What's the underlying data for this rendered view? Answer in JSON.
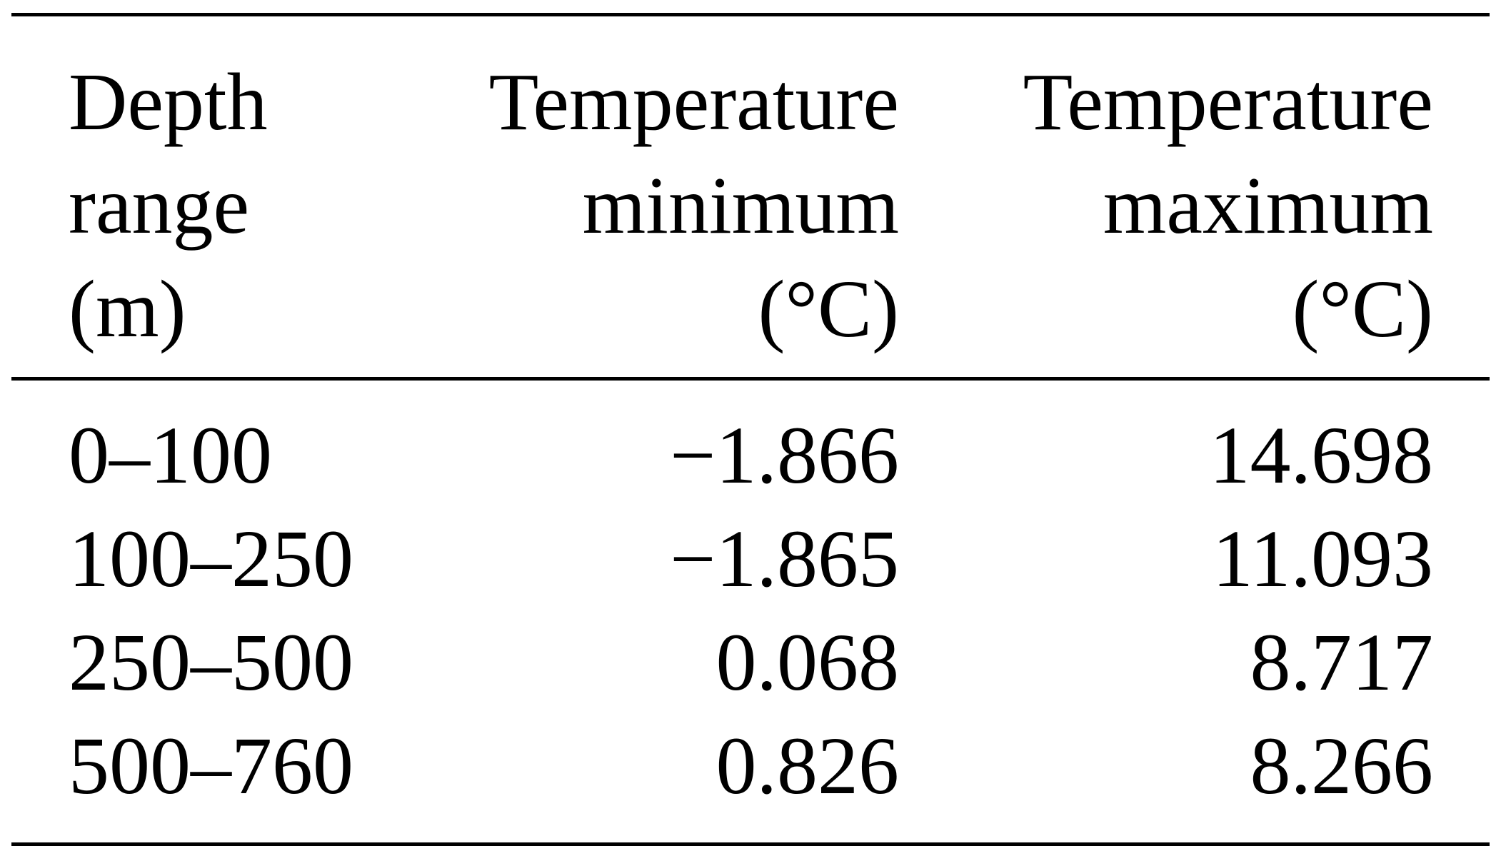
{
  "table": {
    "columns": [
      {
        "lines": [
          "Depth",
          "range",
          "(m)"
        ]
      },
      {
        "lines": [
          "Temperature",
          "minimum",
          "(°C)"
        ]
      },
      {
        "lines": [
          "Temperature",
          "maximum",
          "(°C)"
        ]
      }
    ],
    "rows": [
      {
        "depth": "0–100",
        "min": "−1.866",
        "max": "14.698"
      },
      {
        "depth": "100–250",
        "min": "−1.865",
        "max": "11.093"
      },
      {
        "depth": "250–500",
        "min": "0.068",
        "max": "8.717"
      },
      {
        "depth": "500–760",
        "min": "0.826",
        "max": "8.266"
      }
    ]
  }
}
